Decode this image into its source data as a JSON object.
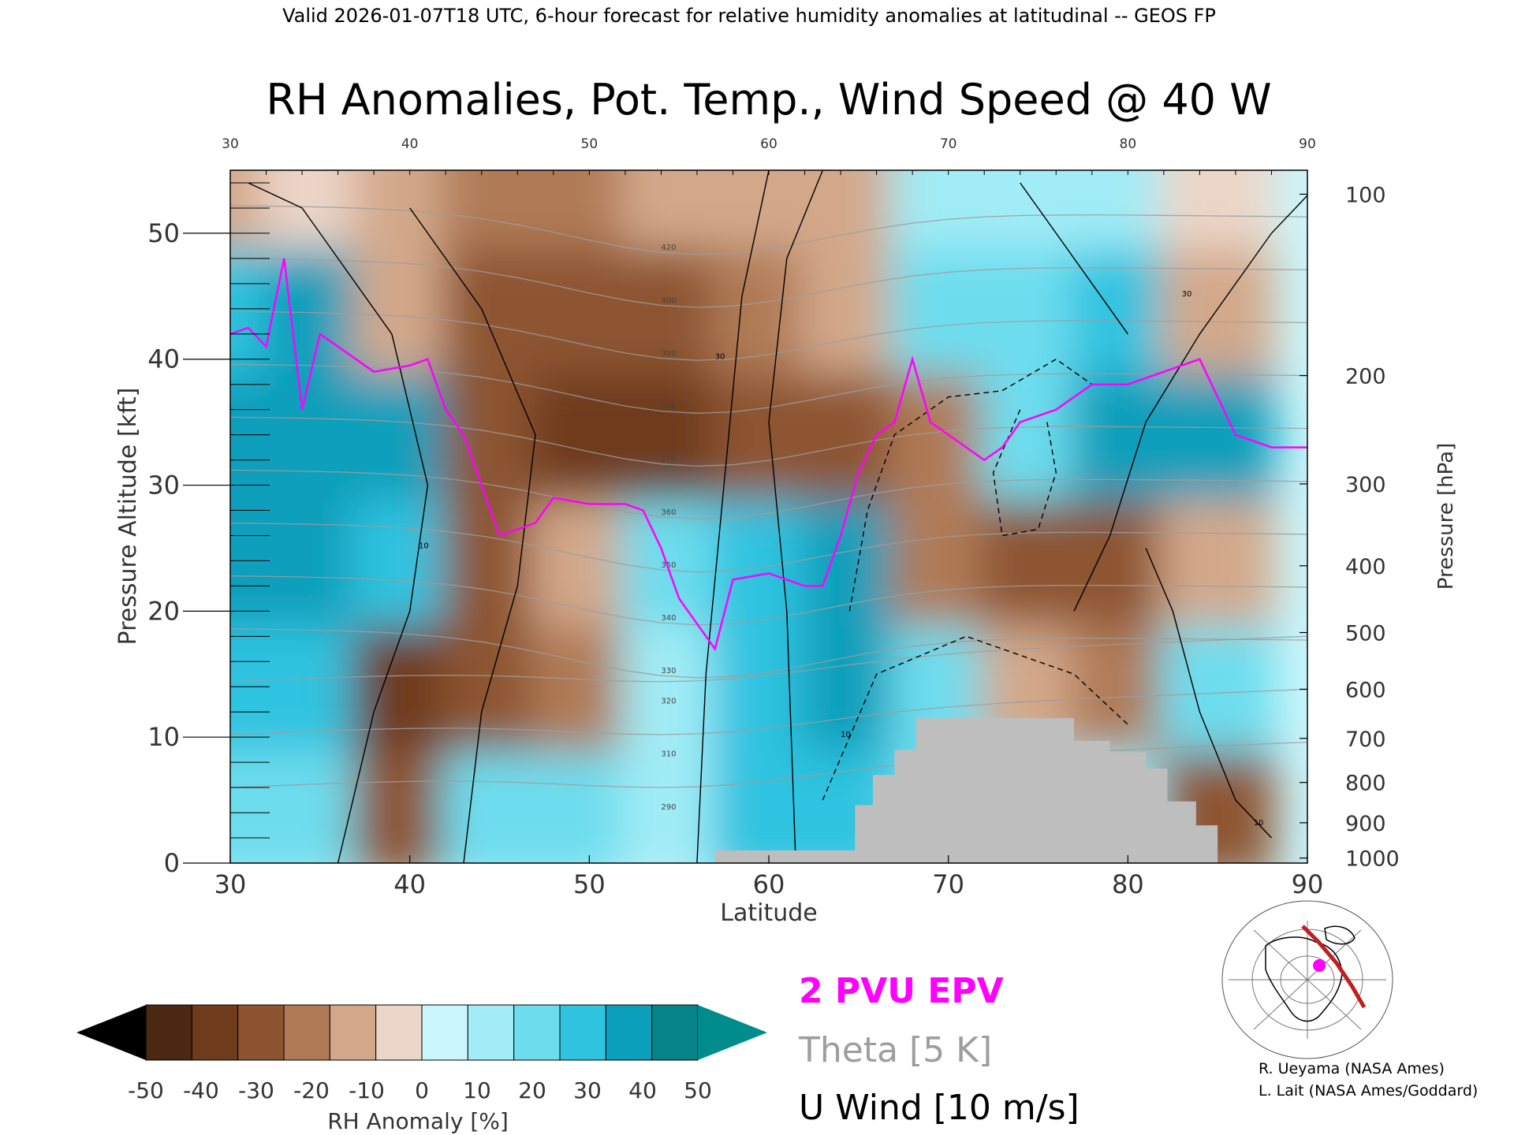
{
  "header": {
    "valid_line": "Valid 2026-01-07T18 UTC, 6-hour forecast for relative humidity anomalies at latitudinal -- GEOS FP"
  },
  "chart_data": {
    "type": "heatmap",
    "title": "RH Anomalies, Pot. Temp., Wind Speed @ 40 W",
    "xlabel": "Latitude",
    "ylabel": "Pressure Altitude [kft]",
    "y2label": "Pressure [hPa]",
    "xlim": [
      30,
      90
    ],
    "ylim": [
      0,
      55
    ],
    "x_ticks": [
      "30",
      "40",
      "50",
      "60",
      "70",
      "80",
      "90"
    ],
    "x_top_ticks": [
      "30",
      "40",
      "50",
      "60",
      "70",
      "80",
      "90"
    ],
    "y_ticks": [
      "0",
      "10",
      "20",
      "30",
      "40",
      "50"
    ],
    "pressure_ticks": [
      {
        "label": "100",
        "kft": 53.1
      },
      {
        "label": "200",
        "kft": 38.7
      },
      {
        "label": "300",
        "kft": 30.1
      },
      {
        "label": "400",
        "kft": 23.6
      },
      {
        "label": "500",
        "kft": 18.3
      },
      {
        "label": "600",
        "kft": 13.8
      },
      {
        "label": "700",
        "kft": 9.9
      },
      {
        "label": "800",
        "kft": 6.4
      },
      {
        "label": "900",
        "kft": 3.2
      },
      {
        "label": "1000",
        "kft": 0.4
      }
    ],
    "rh_cells": [
      {
        "x": 30,
        "y": 5,
        "v": 20
      },
      {
        "x": 35,
        "y": 5,
        "v": 25
      },
      {
        "x": 40,
        "y": 5,
        "v": -30
      },
      {
        "x": 45,
        "y": 5,
        "v": 20
      },
      {
        "x": 50,
        "y": 5,
        "v": 25
      },
      {
        "x": 55,
        "y": 5,
        "v": 10
      },
      {
        "x": 60,
        "y": 5,
        "v": 30
      },
      {
        "x": 65,
        "y": 5,
        "v": 30
      },
      {
        "x": 70,
        "y": 5,
        "v": 25
      },
      {
        "x": 75,
        "y": 5,
        "v": 20
      },
      {
        "x": 80,
        "y": 5,
        "v": 10
      },
      {
        "x": 85,
        "y": 5,
        "v": -35
      },
      {
        "x": 30,
        "y": 15,
        "v": 35
      },
      {
        "x": 35,
        "y": 15,
        "v": 30
      },
      {
        "x": 40,
        "y": 15,
        "v": -45
      },
      {
        "x": 45,
        "y": 15,
        "v": -30
      },
      {
        "x": 50,
        "y": 15,
        "v": -20
      },
      {
        "x": 55,
        "y": 15,
        "v": 15
      },
      {
        "x": 60,
        "y": 15,
        "v": 35
      },
      {
        "x": 65,
        "y": 15,
        "v": 40
      },
      {
        "x": 70,
        "y": 15,
        "v": 25
      },
      {
        "x": 75,
        "y": 15,
        "v": -10
      },
      {
        "x": 80,
        "y": 15,
        "v": -25
      },
      {
        "x": 85,
        "y": 15,
        "v": 20
      },
      {
        "x": 30,
        "y": 25,
        "v": 40
      },
      {
        "x": 35,
        "y": 25,
        "v": 40
      },
      {
        "x": 40,
        "y": 25,
        "v": 30
      },
      {
        "x": 45,
        "y": 25,
        "v": -35
      },
      {
        "x": 50,
        "y": 25,
        "v": -15
      },
      {
        "x": 55,
        "y": 25,
        "v": 25
      },
      {
        "x": 60,
        "y": 25,
        "v": 30
      },
      {
        "x": 65,
        "y": 25,
        "v": 40
      },
      {
        "x": 70,
        "y": 25,
        "v": -20
      },
      {
        "x": 75,
        "y": 25,
        "v": -30
      },
      {
        "x": 80,
        "y": 25,
        "v": -35
      },
      {
        "x": 85,
        "y": 25,
        "v": -15
      },
      {
        "x": 30,
        "y": 35,
        "v": 40
      },
      {
        "x": 35,
        "y": 35,
        "v": 45
      },
      {
        "x": 40,
        "y": 35,
        "v": 45
      },
      {
        "x": 45,
        "y": 35,
        "v": -30
      },
      {
        "x": 50,
        "y": 35,
        "v": -45
      },
      {
        "x": 55,
        "y": 35,
        "v": -40
      },
      {
        "x": 60,
        "y": 35,
        "v": -35
      },
      {
        "x": 65,
        "y": 35,
        "v": -30
      },
      {
        "x": 70,
        "y": 35,
        "v": -20
      },
      {
        "x": 75,
        "y": 35,
        "v": 20
      },
      {
        "x": 80,
        "y": 35,
        "v": 40
      },
      {
        "x": 85,
        "y": 35,
        "v": 40
      },
      {
        "x": 30,
        "y": 45,
        "v": 30
      },
      {
        "x": 35,
        "y": 45,
        "v": 40
      },
      {
        "x": 40,
        "y": 45,
        "v": -10
      },
      {
        "x": 45,
        "y": 45,
        "v": -30
      },
      {
        "x": 50,
        "y": 45,
        "v": -35
      },
      {
        "x": 55,
        "y": 45,
        "v": -30
      },
      {
        "x": 60,
        "y": 45,
        "v": -25
      },
      {
        "x": 65,
        "y": 45,
        "v": -15
      },
      {
        "x": 70,
        "y": 45,
        "v": 20
      },
      {
        "x": 75,
        "y": 45,
        "v": 25
      },
      {
        "x": 80,
        "y": 45,
        "v": 30
      },
      {
        "x": 85,
        "y": 45,
        "v": -10
      },
      {
        "x": 30,
        "y": 55,
        "v": -10
      },
      {
        "x": 35,
        "y": 55,
        "v": -5
      },
      {
        "x": 40,
        "y": 55,
        "v": -15
      },
      {
        "x": 45,
        "y": 55,
        "v": -20
      },
      {
        "x": 50,
        "y": 55,
        "v": -20
      },
      {
        "x": 55,
        "y": 55,
        "v": -15
      },
      {
        "x": 60,
        "y": 55,
        "v": -10
      },
      {
        "x": 65,
        "y": 55,
        "v": -10
      },
      {
        "x": 70,
        "y": 55,
        "v": 10
      },
      {
        "x": 75,
        "y": 55,
        "v": 15
      },
      {
        "x": 80,
        "y": 55,
        "v": 15
      },
      {
        "x": 85,
        "y": 55,
        "v": -5
      }
    ],
    "terrain_mask": [
      {
        "lat": 57,
        "top": 1
      },
      {
        "lat": 60,
        "top": 1
      },
      {
        "lat": 63,
        "top": 1
      },
      {
        "lat": 64.8,
        "top": 4.6
      },
      {
        "lat": 65.8,
        "top": 7
      },
      {
        "lat": 67,
        "top": 9
      },
      {
        "lat": 68.2,
        "top": 11.5
      },
      {
        "lat": 72,
        "top": 11.5
      },
      {
        "lat": 76,
        "top": 11.5
      },
      {
        "lat": 77,
        "top": 9.7
      },
      {
        "lat": 79,
        "top": 8.8
      },
      {
        "lat": 81,
        "top": 7.5
      },
      {
        "lat": 82.2,
        "top": 4.9
      },
      {
        "lat": 83.8,
        "top": 3
      }
    ],
    "epv_2pvu": [
      [
        30,
        42
      ],
      [
        31,
        42.5
      ],
      [
        32,
        41
      ],
      [
        33,
        48
      ],
      [
        34,
        36
      ],
      [
        35,
        42
      ],
      [
        36,
        41
      ],
      [
        38,
        39
      ],
      [
        40,
        39.5
      ],
      [
        41,
        40
      ],
      [
        42,
        36
      ],
      [
        43,
        34
      ],
      [
        44,
        30
      ],
      [
        45,
        26
      ],
      [
        47,
        27
      ],
      [
        48,
        29
      ],
      [
        50,
        28.5
      ],
      [
        52,
        28.5
      ],
      [
        53,
        28
      ],
      [
        54,
        25
      ],
      [
        55,
        21
      ],
      [
        56,
        19
      ],
      [
        57,
        17
      ],
      [
        58,
        22.5
      ],
      [
        60,
        23
      ],
      [
        62,
        22
      ],
      [
        63,
        22
      ],
      [
        64,
        26
      ],
      [
        65,
        31
      ],
      [
        66,
        34
      ],
      [
        67,
        35
      ],
      [
        68,
        40
      ],
      [
        69,
        35
      ],
      [
        70,
        34
      ],
      [
        72,
        32
      ],
      [
        73,
        33
      ],
      [
        74,
        35
      ],
      [
        76,
        36
      ],
      [
        78,
        38
      ],
      [
        80,
        38
      ],
      [
        82,
        39
      ],
      [
        84,
        40
      ],
      [
        86,
        34
      ],
      [
        88,
        33
      ],
      [
        90,
        33
      ]
    ],
    "theta_levels": [
      "290",
      "310",
      "320",
      "330",
      "340",
      "350",
      "360",
      "370",
      "380",
      "390",
      "400",
      "420"
    ],
    "u_wind_labels": [
      "10",
      "30",
      "10",
      "30",
      "10"
    ],
    "colorbar": {
      "ticks": [
        "-50",
        "-40",
        "-30",
        "-20",
        "-10",
        "0",
        "10",
        "20",
        "30",
        "40",
        "50"
      ],
      "label": "RH Anomaly [%]",
      "colors": [
        "#4b2812",
        "#6e3b1c",
        "#8d5431",
        "#b07a56",
        "#d3a88a",
        "#ecd6c8",
        "#cbf6fb",
        "#a1ecf6",
        "#6dddee",
        "#2fc3e0",
        "#0b9fbb",
        "#07848a"
      ],
      "under_color": "#000000",
      "over_color": "#008c8c"
    }
  },
  "legend": {
    "epv": "2 PVU EPV",
    "theta": "Theta [5 K]",
    "wind": "U Wind [10 m/s]",
    "epv_color": "#ff00ff",
    "theta_color": "#9e9e9e",
    "wind_color": "#000000"
  },
  "credits": {
    "line1": "R. Ueyama (NASA Ames)",
    "line2": "L. Lait (NASA Ames/Goddard)"
  },
  "inset_map": {
    "icon": "orthographic-globe-map-icon",
    "track_color": "#c02020",
    "marker_color": "#ff00ff"
  }
}
